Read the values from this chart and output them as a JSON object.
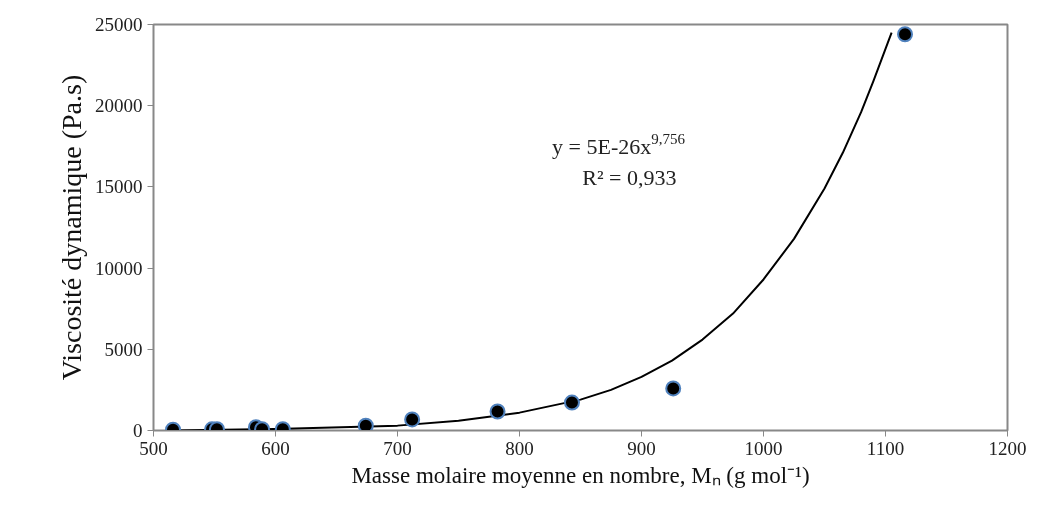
{
  "chart_data": {
    "type": "scatter",
    "xlabel": "Masse molaire moyenne en nombre, Mₙ (g mol⁻¹)",
    "ylabel": "Viscosité dynamique (Pa.s)",
    "xlim": [
      500,
      1200
    ],
    "xticks": [
      500,
      600,
      700,
      800,
      900,
      1000,
      1100,
      1200
    ],
    "ylim": [
      0,
      25000
    ],
    "yticks": [
      0,
      5000,
      10000,
      15000,
      20000,
      25000
    ],
    "grid": false,
    "annotations": [
      "y = 5E-26x$^{9,756}$",
      "R² = 0,933"
    ],
    "series": [
      {
        "color": "#000000",
        "marker": "circle",
        "x": [
          516,
          548,
          552,
          584,
          589,
          606,
          674,
          712,
          782,
          843,
          926,
          1116
        ],
        "values": [
          50,
          70,
          80,
          200,
          80,
          80,
          300,
          680,
          1170,
          1720,
          2590,
          24400
        ]
      },
      {
        "type": "line",
        "color": "#000000",
        "line_style": "solid",
        "x": [
          516,
          600,
          700,
          750,
          800,
          850,
          875,
          900,
          925,
          950,
          975,
          1000,
          1025,
          1050,
          1065,
          1080,
          1090,
          1100,
          1105
        ],
        "values": [
          0,
          100,
          300,
          600,
          1100,
          1900,
          2500,
          3300,
          4300,
          5600,
          7200,
          9300,
          11800,
          14900,
          17100,
          19600,
          21500,
          23500,
          24500
        ]
      }
    ]
  }
}
